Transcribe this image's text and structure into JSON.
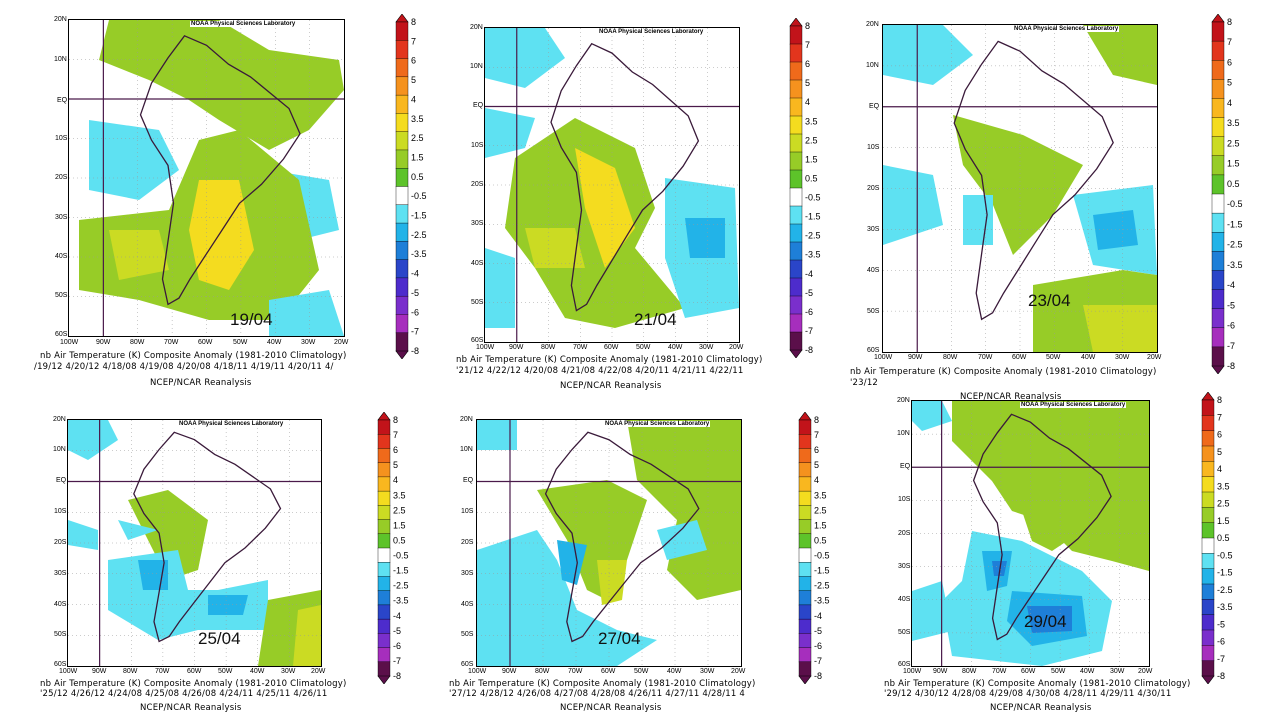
{
  "credit": "NOAA Physical Sciences Laboratory",
  "lat_labels": [
    "20N",
    "10N",
    "EQ",
    "10S",
    "20S",
    "30S",
    "40S",
    "50S",
    "60S"
  ],
  "lon_labels": [
    "100W",
    "90W",
    "80W",
    "70W",
    "60W",
    "50W",
    "40W",
    "30W",
    "20W"
  ],
  "colorbar": {
    "labels": [
      "8",
      "7",
      "6",
      "5",
      "4",
      "3.5",
      "2.5",
      "1.5",
      "0.5",
      "-0.5",
      "-1.5",
      "-2.5",
      "-3.5",
      "-4",
      "-5",
      "-6",
      "-7",
      "-8"
    ],
    "labels_short_neg": [
      "8",
      "7",
      "6",
      "5",
      "4",
      "3.5",
      "2.5",
      "1.5",
      "0.5",
      "-0.5",
      "-1.5",
      "-2.5",
      "-3.5",
      "-5",
      "-6",
      "-7",
      "-8"
    ],
    "colors": [
      "#c2131a",
      "#e2351d",
      "#ef6a1b",
      "#f5921e",
      "#f9b71f",
      "#f4dc1f",
      "#cbdb23",
      "#97cc27",
      "#5dc32a",
      "#ffffff",
      "#5ee1f2",
      "#22b3e8",
      "#1e7fd8",
      "#2a45c9",
      "#4d2ccc",
      "#7a2fcc",
      "#a62ebd",
      "#5b0f4a"
    ]
  },
  "panels": [
    {
      "date": "19/04",
      "caption1": "nb Air Temperature (K) Composite Anomaly (1981-2010 Climatology)",
      "caption2": "/19/12 4/20/12 4/18/08 4/19/08 4/20/08 4/18/11 4/19/11 4/20/11 4/",
      "caption3": "NCEP/NCAR Reanalysis"
    },
    {
      "date": "21/04",
      "caption1": "nb Air Temperature (K) Composite Anomaly (1981-2010 Climatology)",
      "caption2": "'21/12 4/22/12 4/20/08 4/21/08 4/22/08 4/20/11 4/21/11 4/22/11",
      "caption3": "NCEP/NCAR Reanalysis"
    },
    {
      "date": "23/04",
      "caption1": "nb Air Temperature (K) Composite Anomaly (1981-2010 Climatology)",
      "caption2": "'23/12",
      "caption3": "NCEP/NCAR Reanalysis"
    },
    {
      "date": "25/04",
      "caption1": "nb Air Temperature (K) Composite Anomaly (1981-2010 Climatology)",
      "caption2": "'25/12 4/26/12 4/24/08 4/25/08 4/26/08 4/24/11 4/25/11 4/26/11",
      "caption3": "NCEP/NCAR Reanalysis"
    },
    {
      "date": "27/04",
      "caption1": "nb Air Temperature (K) Composite Anomaly (1981-2010 Climatology)",
      "caption2": "'27/12 4/28/12 4/26/08 4/27/08 4/28/08 4/26/11 4/27/11 4/28/11 4",
      "caption3": "NCEP/NCAR Reanalysis"
    },
    {
      "date": "29/04",
      "caption1": "nb Air Temperature (K) Composite Anomaly (1981-2010 Climatology)",
      "caption2": "'29/12 4/30/12 4/28/08 4/29/08 4/30/08 4/28/11 4/29/11 4/30/11",
      "caption3": "NCEP/NCAR Reanalysis"
    }
  ]
}
